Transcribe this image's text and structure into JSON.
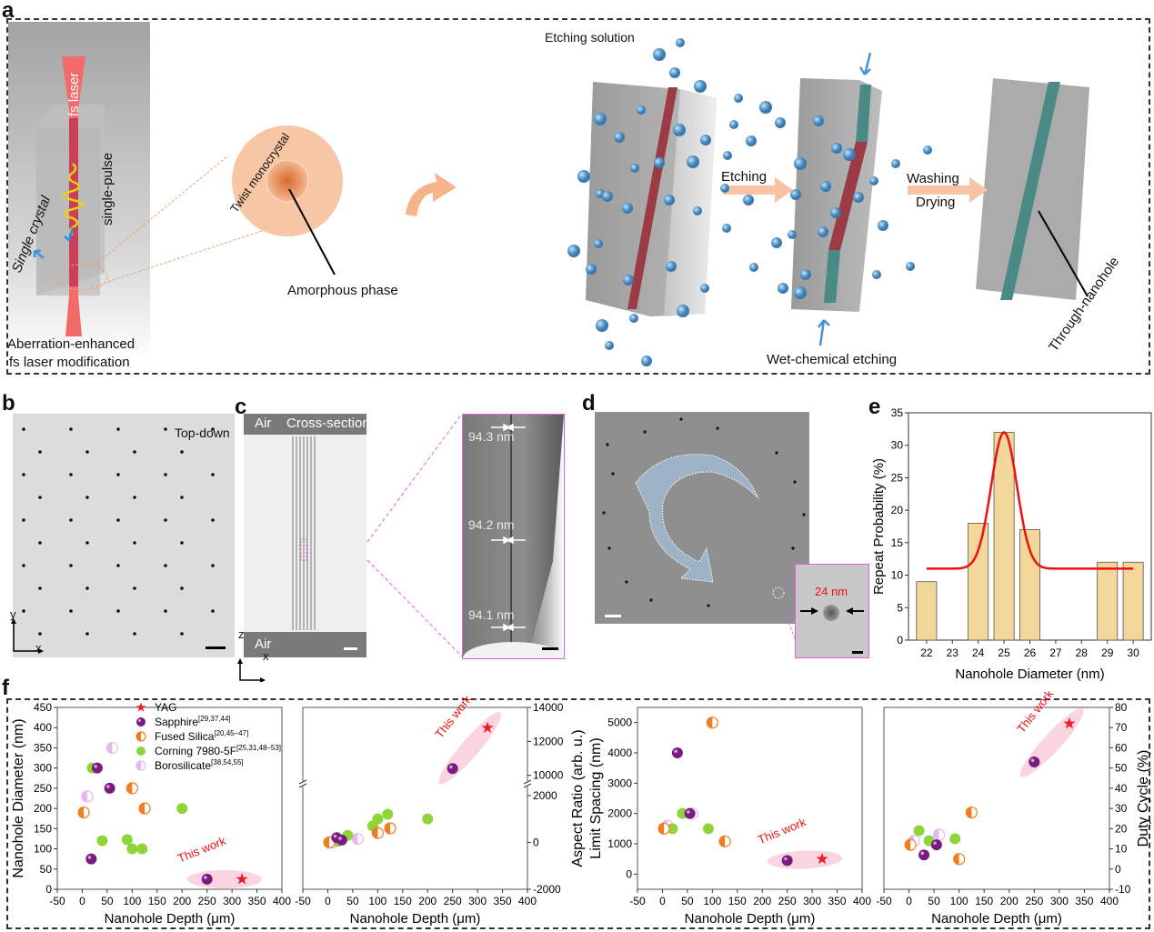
{
  "panel_labels": {
    "a": "a",
    "b": "b",
    "c": "c",
    "d": "d",
    "e": "e",
    "f": "f"
  },
  "panel_a": {
    "fs_laser": "fs laser",
    "single_pulse": "single-pulse",
    "single_crystal": "Single crystal",
    "caption_line1": "Aberration-enhanced",
    "caption_line2": "fs laser modification",
    "twist_monocrystal": "Twist monocrystal",
    "amorphous_phase": "Amorphous phase",
    "etching_solution": "Etching solution",
    "etching": "Etching",
    "washing": "Washing",
    "drying": "Drying",
    "wet_chemical_etching": "Wet-chemical etching",
    "through_nanohole": "Through-nanohole",
    "colors": {
      "laser": "#f06a6a",
      "modified": "#9b3b45",
      "etched": "#4a8a86",
      "bubble": "#5d9ed2",
      "arrow": "#f7bf9a",
      "block": "#a9a9a9"
    }
  },
  "panel_b": {
    "label": "Top-down",
    "axis_x": "x",
    "axis_y": "y"
  },
  "panel_c": {
    "air_top": "Air",
    "cross_section": "Cross-section",
    "air_bottom": "Air",
    "axis_z": "z",
    "axis_x": "x",
    "measurements": [
      "94.3 nm",
      "94.2 nm",
      "94.1 nm"
    ]
  },
  "panel_d": {
    "inset_measurement": "24 nm"
  },
  "chart_data": [
    {
      "id": "e",
      "type": "bar",
      "categories": [
        "22",
        "23",
        "24",
        "25",
        "26",
        "27",
        "28",
        "29",
        "30"
      ],
      "values": [
        9,
        0,
        18,
        32,
        17,
        0,
        0,
        12,
        12
      ],
      "fit": {
        "type": "gaussian",
        "baseline": 11,
        "peak": 32,
        "center": 25,
        "sigma": 0.5
      },
      "xlabel": "Nanohole Diameter (nm)",
      "ylabel": "Repeat Probability (%)",
      "ylim": [
        0,
        35
      ],
      "yticks": [
        0,
        5,
        10,
        15,
        20,
        25,
        30,
        35
      ],
      "bar_color": "#f3d79a",
      "fit_color": "#ee1111"
    },
    {
      "id": "f1",
      "type": "scatter",
      "xlabel": "Nanohole Depth (μm)",
      "ylabel": "Nanohole Diameter (nm)",
      "xlim": [
        -50,
        400
      ],
      "ylim": [
        0,
        450
      ],
      "xticks": [
        -50,
        0,
        50,
        100,
        150,
        200,
        250,
        300,
        350,
        400
      ],
      "yticks": [
        0,
        50,
        100,
        150,
        200,
        250,
        300,
        350,
        400,
        450
      ],
      "annotation": "This work",
      "legend": [
        {
          "name": "YAG",
          "ref": "",
          "marker": "star",
          "color": "#ee1c25"
        },
        {
          "name": "Sapphire",
          "ref": "[29,37,44]",
          "marker": "sphere",
          "color": "#7a1b7e"
        },
        {
          "name": "Fused Silica",
          "ref": "[20,45–47]",
          "marker": "half",
          "color": "#f47c20"
        },
        {
          "name": "Corning 7980-5F",
          "ref": "[25,31,48–53]",
          "marker": "dot",
          "color": "#8fd43a"
        },
        {
          "name": "Borosilicate",
          "ref": "[38,54,55]",
          "marker": "half",
          "color": "#e7b6f0"
        }
      ],
      "series": [
        {
          "name": "YAG",
          "points": [
            [
              320,
              25
            ]
          ]
        },
        {
          "name": "Sapphire",
          "points": [
            [
              30,
              300
            ],
            [
              55,
              250
            ],
            [
              18,
              75
            ],
            [
              250,
              25
            ]
          ]
        },
        {
          "name": "Fused Silica",
          "points": [
            [
              100,
              250
            ],
            [
              125,
              200
            ],
            [
              3,
              190
            ]
          ]
        },
        {
          "name": "Corning 7980-5F",
          "points": [
            [
              20,
              300
            ],
            [
              200,
              200
            ],
            [
              40,
              120
            ],
            [
              90,
              123
            ],
            [
              100,
              100
            ],
            [
              120,
              100
            ]
          ]
        },
        {
          "name": "Borosilicate",
          "points": [
            [
              60,
              350
            ],
            [
              10,
              230
            ]
          ]
        }
      ]
    },
    {
      "id": "f2",
      "type": "scatter",
      "xlabel": "Nanohole Depth (μm)",
      "ylabel": "Aspect Ratio (arb. u.)",
      "xlim": [
        -50,
        400
      ],
      "ylim": [
        -2000,
        14000
      ],
      "axis_break": [
        2500,
        9500
      ],
      "xticks": [
        -50,
        0,
        50,
        100,
        150,
        200,
        250,
        300,
        350,
        400
      ],
      "yticks": [
        -2000,
        0,
        2000,
        10000,
        12000,
        14000
      ],
      "annotation": "This work",
      "series": [
        {
          "name": "YAG",
          "points": [
            [
              320,
              12800
            ]
          ]
        },
        {
          "name": "Sapphire",
          "points": [
            [
              18,
              200
            ],
            [
              28,
              100
            ],
            [
              250,
              10400
            ]
          ]
        },
        {
          "name": "Fused Silica",
          "points": [
            [
              3,
              0
            ],
            [
              100,
              400
            ],
            [
              125,
              600
            ]
          ]
        },
        {
          "name": "Corning 7980-5F",
          "points": [
            [
              20,
              50
            ],
            [
              40,
              300
            ],
            [
              90,
              700
            ],
            [
              100,
              1000
            ],
            [
              120,
              1200
            ],
            [
              200,
              1000
            ]
          ]
        },
        {
          "name": "Borosilicate",
          "points": [
            [
              10,
              0
            ],
            [
              60,
              150
            ]
          ]
        }
      ]
    },
    {
      "id": "f3",
      "type": "scatter",
      "xlabel": "Nanohole Depth (μm)",
      "ylabel": "Limit Spacing (nm)",
      "xlim": [
        -50,
        400
      ],
      "ylim": [
        -500,
        5500
      ],
      "xticks": [
        -50,
        0,
        50,
        100,
        150,
        200,
        250,
        300,
        350,
        400
      ],
      "yticks": [
        0,
        1000,
        2000,
        3000,
        4000,
        5000
      ],
      "annotation": "This work",
      "series": [
        {
          "name": "YAG",
          "points": [
            [
              320,
              500
            ]
          ]
        },
        {
          "name": "Sapphire",
          "points": [
            [
              30,
              4000
            ],
            [
              55,
              2000
            ],
            [
              250,
              450
            ]
          ]
        },
        {
          "name": "Fused Silica",
          "points": [
            [
              100,
              5000
            ],
            [
              3,
              1500
            ],
            [
              125,
              1080
            ]
          ]
        },
        {
          "name": "Corning 7980-5F",
          "points": [
            [
              40,
              2000
            ],
            [
              20,
              1500
            ],
            [
              92,
              1500
            ]
          ]
        },
        {
          "name": "Borosilicate",
          "points": [
            [
              60,
              2000
            ],
            [
              10,
              1600
            ]
          ]
        }
      ]
    },
    {
      "id": "f4",
      "type": "scatter",
      "xlabel": "Nanohole Depth (μm)",
      "ylabel": "Duty Cycle (%)",
      "xlim": [
        -50,
        400
      ],
      "ylim": [
        -10,
        80
      ],
      "xticks": [
        -50,
        0,
        50,
        100,
        150,
        200,
        250,
        300,
        350,
        400
      ],
      "yticks": [
        -10,
        0,
        10,
        20,
        30,
        40,
        50,
        60,
        70,
        80
      ],
      "annotation": "This work",
      "series": [
        {
          "name": "YAG",
          "points": [
            [
              320,
              72
            ]
          ]
        },
        {
          "name": "Sapphire",
          "points": [
            [
              30,
              7
            ],
            [
              55,
              12
            ],
            [
              250,
              53
            ]
          ]
        },
        {
          "name": "Fused Silica",
          "points": [
            [
              125,
              28
            ],
            [
              100,
              5
            ],
            [
              3,
              12
            ]
          ]
        },
        {
          "name": "Corning 7980-5F",
          "points": [
            [
              20,
              19
            ],
            [
              40,
              14
            ],
            [
              92,
              15
            ]
          ]
        },
        {
          "name": "Borosilicate",
          "points": [
            [
              60,
              17
            ],
            [
              10,
              14
            ]
          ]
        }
      ]
    }
  ]
}
